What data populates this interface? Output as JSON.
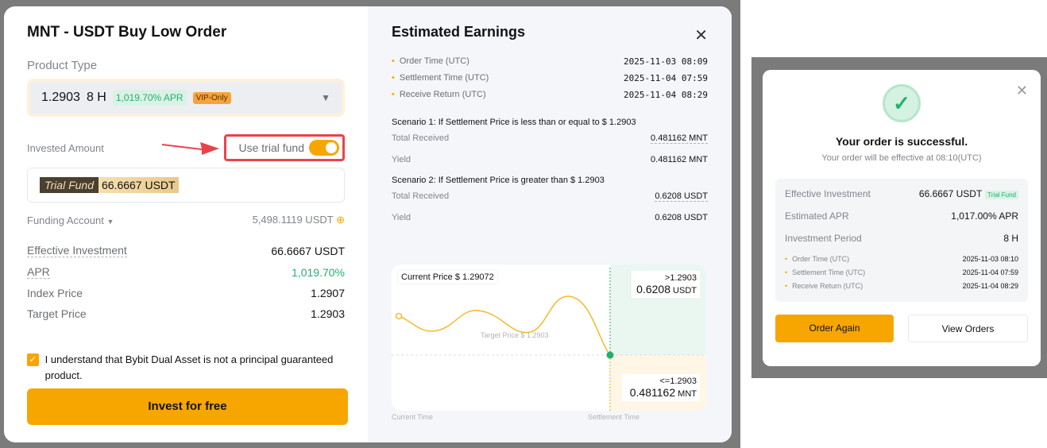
{
  "order": {
    "title": "MNT - USDT Buy Low Order",
    "product_type_label": "Product Type",
    "product": {
      "price": "1.2903",
      "period": "8 H",
      "apr": "1,019.70% APR",
      "vip": "VIP-Only"
    },
    "invested_label": "Invested Amount",
    "trial_label": "Use trial fund",
    "trial_enabled": true,
    "trial_tag": "Trial Fund",
    "trial_amount": "66.6667 USDT",
    "funding_label": "Funding Account",
    "funding_value": "5,498.1119 USDT",
    "details": [
      {
        "k": "Effective Investment",
        "v": "66.6667 USDT"
      },
      {
        "k": "APR",
        "v": "1,019.70%"
      },
      {
        "k": "Index Price",
        "v": "1.2907"
      },
      {
        "k": "Target Price",
        "v": "1.2903"
      }
    ],
    "agreement": "I understand that Bybit Dual Asset is not a principal guaranteed product.",
    "agree_checked": true,
    "invest_button": "Invest for free"
  },
  "earnings": {
    "title": "Estimated Earnings",
    "timeline": [
      {
        "k": "Order Time (UTC)",
        "v": "2025-11-03 08:09"
      },
      {
        "k": "Settlement Time (UTC)",
        "v": "2025-11-04 07:59"
      },
      {
        "k": "Receive Return (UTC)",
        "v": "2025-11-04 08:29"
      }
    ],
    "scenario1": {
      "title": "Scenario 1: If Settlement Price is less than or equal to $ 1.2903",
      "total_label": "Total Received",
      "total": "0.481162 MNT",
      "yield_label": "Yield",
      "yield": "0.481162 MNT"
    },
    "scenario2": {
      "title": "Scenario 2: If Settlement Price is greater than $ 1.2903",
      "total_label": "Total Received",
      "total": "0.6208 USDT",
      "yield_label": "Yield",
      "yield": "0.6208 USDT"
    },
    "chart": {
      "current_price": "Current Price $ 1.29072",
      "target": "Target Price $ 1.2903",
      "above_cond": ">1.2903",
      "above_val": "0.6208",
      "above_unit": "USDT",
      "below_cond": "<=1.2903",
      "below_val": "0.481162",
      "below_unit": "MNT",
      "x_start": "Current Time",
      "x_end": "Settlement Time"
    }
  },
  "success": {
    "title": "Your order is successful.",
    "subtitle": "Your order will be effective at 08:10(UTC)",
    "rows": [
      {
        "k": "Effective Investment",
        "v": "66.6667 USDT",
        "tag": "Trial Fund"
      },
      {
        "k": "Estimated APR",
        "v": "1,017.00% APR"
      },
      {
        "k": "Investment Period",
        "v": "8 H"
      }
    ],
    "timeline": [
      {
        "k": "Order Time (UTC)",
        "v": "2025-11-03 08:10"
      },
      {
        "k": "Settlement Time (UTC)",
        "v": "2025-11-04 07:59"
      },
      {
        "k": "Receive Return (UTC)",
        "v": "2025-11-04 08:29"
      }
    ],
    "order_again": "Order Again",
    "view_orders": "View Orders"
  },
  "colors": {
    "accent": "#f7a600",
    "green": "#20b26c",
    "highlight": "#e9434a"
  }
}
